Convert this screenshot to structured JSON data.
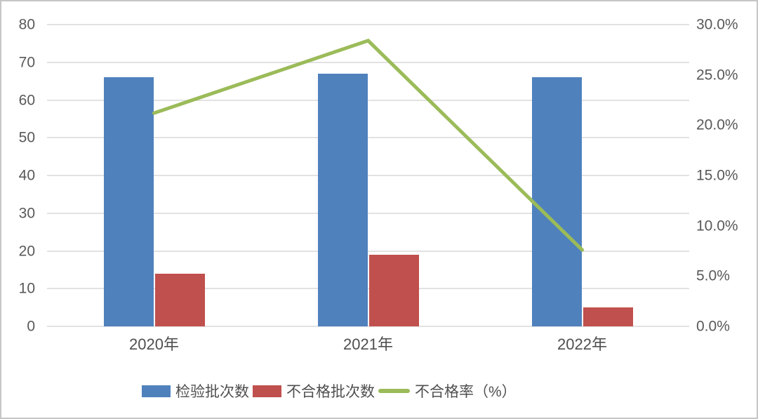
{
  "chart_data": {
    "type": "combo-bar-line",
    "categories": [
      "2020年",
      "2021年",
      "2022年"
    ],
    "series": [
      {
        "id": "inspected-batches",
        "name": "检验批次数",
        "type": "bar",
        "axis": "left",
        "color": "#4f81bd",
        "values": [
          66,
          67,
          66
        ]
      },
      {
        "id": "unqualified-batches",
        "name": "不合格批次数",
        "type": "bar",
        "axis": "left",
        "color": "#c0504d",
        "values": [
          14,
          19,
          5
        ]
      },
      {
        "id": "unqualified-rate",
        "name": "不合格率（%）",
        "type": "line",
        "axis": "right",
        "color": "#9bbb59",
        "values": [
          21.2,
          28.4,
          7.6
        ]
      }
    ],
    "left_axis": {
      "min": 0,
      "max": 80,
      "step": 10,
      "tick_labels": [
        "0",
        "10",
        "20",
        "30",
        "40",
        "50",
        "60",
        "70",
        "80"
      ]
    },
    "right_axis": {
      "min": 0,
      "max": 30,
      "step": 5,
      "tick_labels": [
        "0.0%",
        "5.0%",
        "10.0%",
        "15.0%",
        "20.0%",
        "25.0%",
        "30.0%"
      ]
    },
    "grid": true,
    "legend_position": "bottom"
  },
  "colors": {
    "bar_blue": "#4f81bd",
    "bar_red": "#c0504d",
    "line_green": "#9bbb59",
    "grid": "#e2e2e2",
    "text": "#595959",
    "frame_border": "#c6c6c6",
    "background": "#ffffff"
  }
}
